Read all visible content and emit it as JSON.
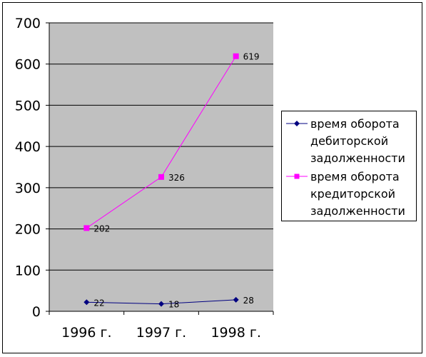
{
  "chart_data": {
    "type": "line",
    "categories": [
      "1996 г.",
      "1997 г.",
      "1998 г."
    ],
    "series": [
      {
        "name": "время оборота дебиторской задолженности",
        "values": [
          22,
          18,
          28
        ],
        "color": "#000080",
        "marker": "diamond"
      },
      {
        "name": "время оборота кредиторской задолженности",
        "values": [
          202,
          326,
          619
        ],
        "color": "#FF00FF",
        "marker": "square"
      }
    ],
    "y_ticks": [
      "0",
      "100",
      "200",
      "300",
      "400",
      "500",
      "600",
      "700"
    ],
    "ylim": [
      0,
      700
    ],
    "grid": true,
    "plot_background": "#C0C0C0",
    "legend_position": "right",
    "title": "",
    "xlabel": "",
    "ylabel": ""
  }
}
